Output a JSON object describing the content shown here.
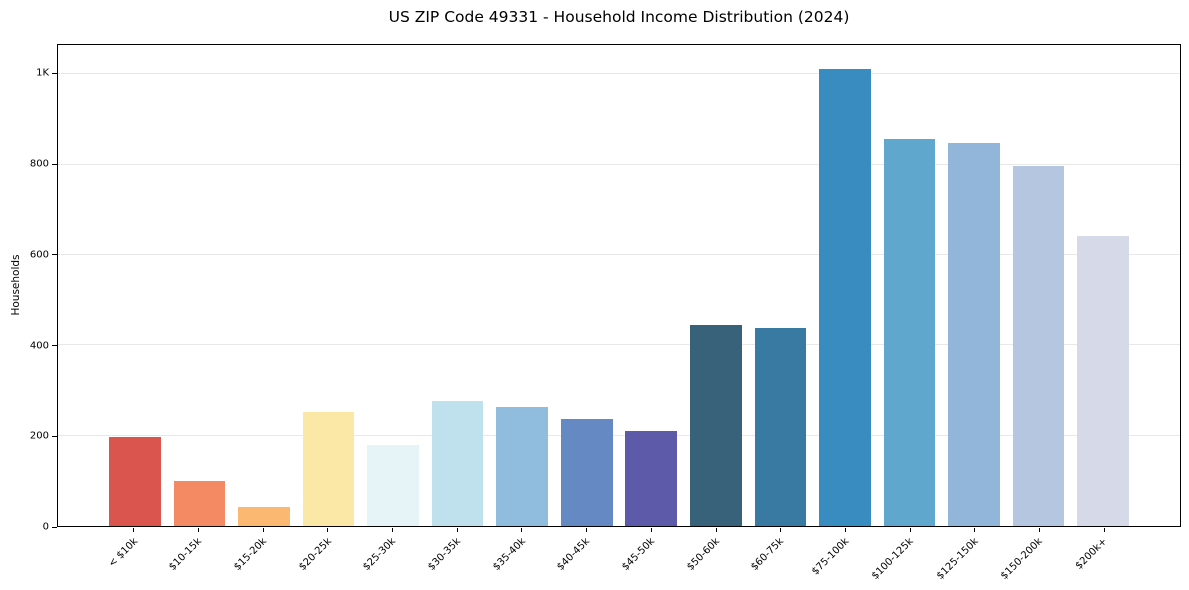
{
  "chart_data": {
    "type": "bar",
    "title": "US ZIP Code 49331 - Household Income Distribution (2024)",
    "ylabel": "Households",
    "xlabel": "",
    "categories": [
      "< $10k",
      "$10-15k",
      "$15-20k",
      "$20-25k",
      "$25-30k",
      "$30-35k",
      "$35-40k",
      "$40-45k",
      "$45-50k",
      "$50-60k",
      "$60-75k",
      "$75-100k",
      "$100-125k",
      "$125-150k",
      "$150-200k",
      "$200k+"
    ],
    "values": [
      197,
      100,
      42,
      253,
      180,
      277,
      264,
      237,
      210,
      445,
      438,
      1012,
      856,
      848,
      797,
      643
    ],
    "bar_colors": [
      "#d9554d",
      "#f48a64",
      "#fab871",
      "#fce8a6",
      "#e6f3f7",
      "#bee1ed",
      "#90bddd",
      "#6589c2",
      "#5c5aa9",
      "#38617a",
      "#397aa2",
      "#388cc0",
      "#5fa7cd",
      "#91b6da",
      "#b5c6e0",
      "#d6d9e7"
    ],
    "yticks": [
      {
        "value": 0,
        "label": "0"
      },
      {
        "value": 200,
        "label": "200"
      },
      {
        "value": 400,
        "label": "400"
      },
      {
        "value": 600,
        "label": "600"
      },
      {
        "value": 800,
        "label": "800"
      },
      {
        "value": 1000,
        "label": "1K"
      }
    ],
    "ylim": [
      0,
      1065
    ],
    "xlim": [
      -1.19,
      16.19
    ],
    "bar_width": 0.8,
    "grid": "horizontal",
    "grid_color": "#e8e8e8",
    "axis_color": "#000000",
    "background_color": "#ffffff",
    "legend": "none",
    "x_tick_label_rotation_deg": 45
  }
}
